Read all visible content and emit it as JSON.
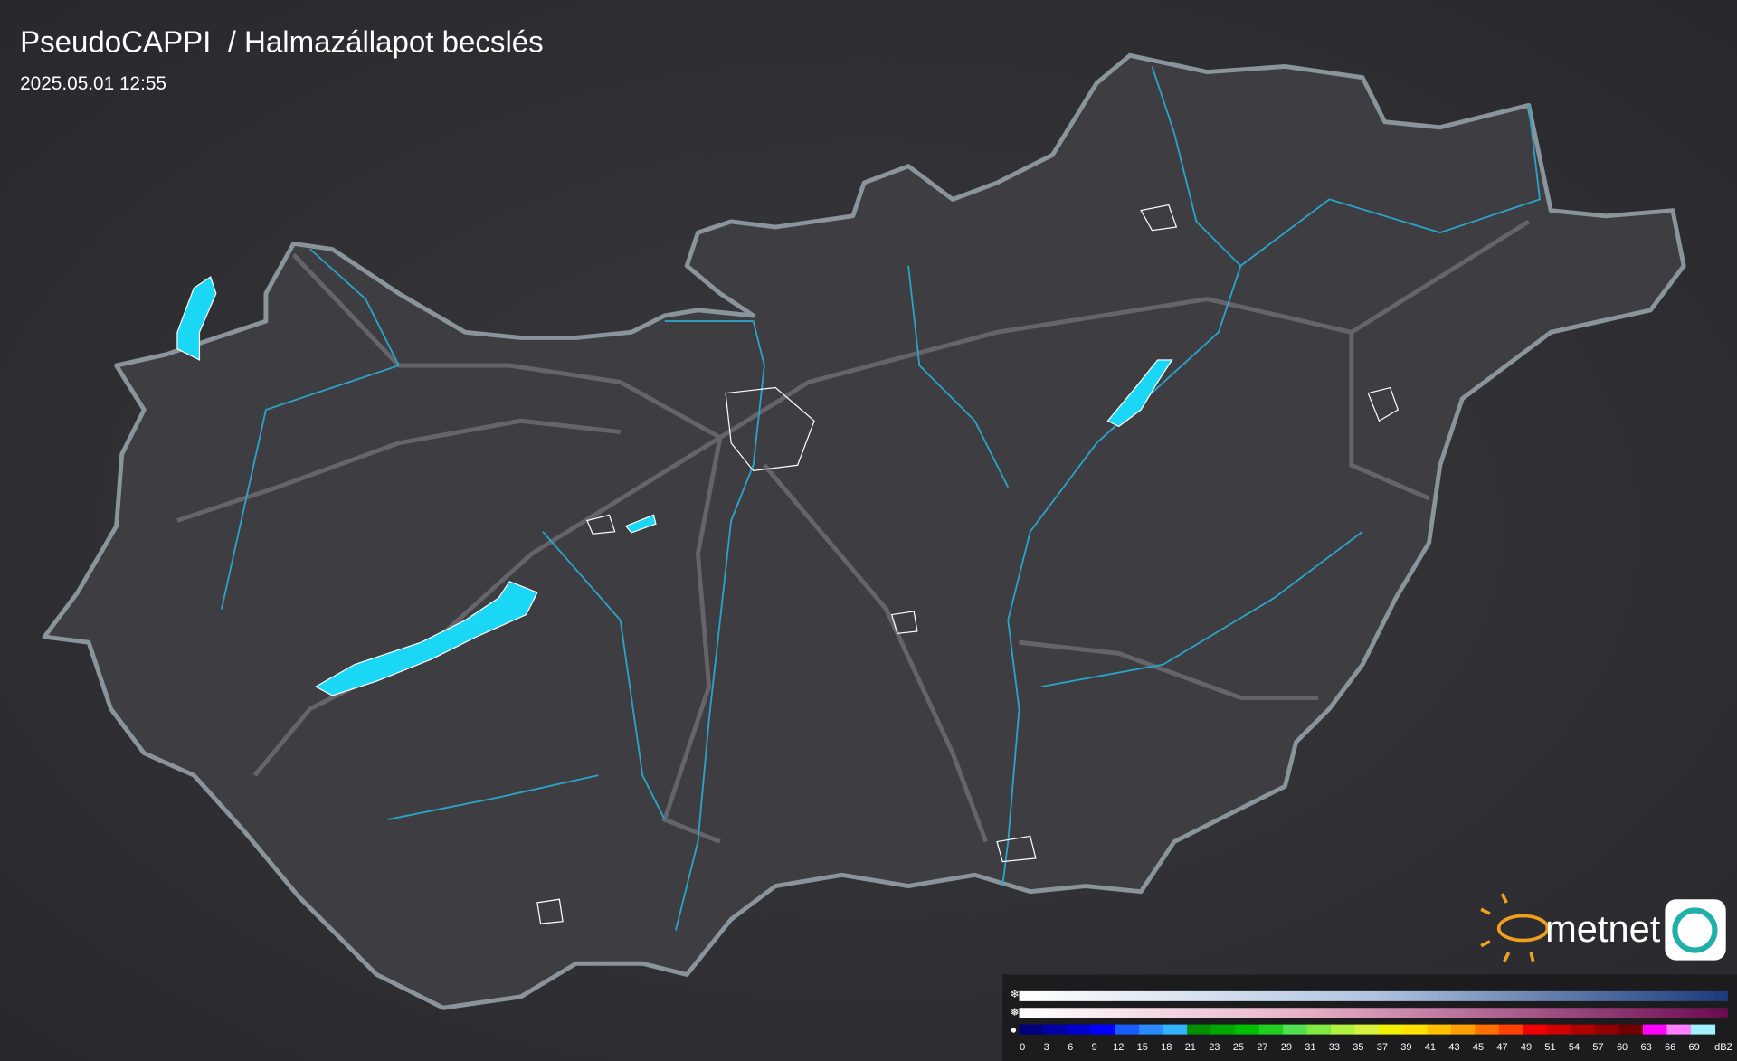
{
  "header": {
    "title": "PseudoCAPPI  / Halmazállapot becslés",
    "timestamp": "2025.05.01 12:55"
  },
  "legend": {
    "ticks": [
      0,
      3,
      6,
      9,
      12,
      15,
      18,
      21,
      23,
      25,
      27,
      29,
      31,
      33,
      35,
      37,
      39,
      41,
      43,
      45,
      47,
      49,
      51,
      54,
      57,
      60,
      63,
      66,
      69
    ],
    "unit": "dBZ",
    "rain_colors": [
      "#00007f",
      "#0000a8",
      "#0000d0",
      "#0000ff",
      "#1a5cff",
      "#2b8cff",
      "#32b4ff",
      "#009000",
      "#00a800",
      "#00c000",
      "#20d020",
      "#50e050",
      "#80e840",
      "#b0f040",
      "#d8f040",
      "#f0f000",
      "#ffe000",
      "#ffc000",
      "#ffa000",
      "#ff7000",
      "#ff4000",
      "#f00000",
      "#d00000",
      "#b00000",
      "#900000",
      "#700000",
      "#ff00ff",
      "#ff80ff",
      "#a0f0ff"
    ]
  },
  "logo": {
    "text": "metnet"
  }
}
